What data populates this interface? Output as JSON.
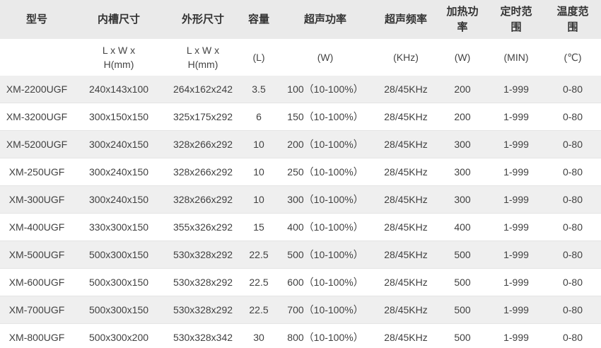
{
  "colors": {
    "page_background": "#ffffff",
    "header_background": "#eaeaea",
    "stripe_background": "#efefef",
    "header_text": "#333333",
    "body_text": "#414141",
    "row_border": "#e4e4e4",
    "table_bottom_border": "#d6d6d6"
  },
  "table": {
    "headers": [
      "型号",
      "内槽尺寸",
      "外形尺寸",
      "容量",
      "超声功率",
      "超声频率",
      "加热功\n率",
      "定时范\n围",
      "温度范\n围"
    ],
    "units": [
      "",
      "L x W x\nH(mm)",
      "L x W x\nH(mm)",
      "(L)",
      "(W)",
      "(KHz)",
      "(W)",
      "(MIN)",
      "(℃)"
    ],
    "rows": [
      [
        "XM-2200UGF",
        "240x143x100",
        "264x162x242",
        "3.5",
        "100（10-100%）",
        "28/45KHz",
        "200",
        "1-999",
        "0-80"
      ],
      [
        "XM-3200UGF",
        "300x150x150",
        "325x175x292",
        "6",
        "150（10-100%）",
        "28/45KHz",
        "200",
        "1-999",
        "0-80"
      ],
      [
        "XM-5200UGF",
        "300x240x150",
        "328x266x292",
        "10",
        "200（10-100%）",
        "28/45KHz",
        "300",
        "1-999",
        "0-80"
      ],
      [
        "XM-250UGF",
        "300x240x150",
        "328x266x292",
        "10",
        "250（10-100%）",
        "28/45KHz",
        "300",
        "1-999",
        "0-80"
      ],
      [
        "XM-300UGF",
        "300x240x150",
        "328x266x292",
        "10",
        "300（10-100%）",
        "28/45KHz",
        "300",
        "1-999",
        "0-80"
      ],
      [
        "XM-400UGF",
        "330x300x150",
        "355x326x292",
        "15",
        "400（10-100%）",
        "28/45KHz",
        "400",
        "1-999",
        "0-80"
      ],
      [
        "XM-500UGF",
        "500x300x150",
        "530x328x292",
        "22.5",
        "500（10-100%）",
        "28/45KHz",
        "500",
        "1-999",
        "0-80"
      ],
      [
        "XM-600UGF",
        "500x300x150",
        "530x328x292",
        "22.5",
        "600（10-100%）",
        "28/45KHz",
        "500",
        "1-999",
        "0-80"
      ],
      [
        "XM-700UGF",
        "500x300x150",
        "530x328x292",
        "22.5",
        "700（10-100%）",
        "28/45KHz",
        "500",
        "1-999",
        "0-80"
      ],
      [
        "XM-800UGF",
        "500x300x200",
        "530x328x342",
        "30",
        "800（10-100%）",
        "28/45KHz",
        "500",
        "1-999",
        "0-80"
      ]
    ]
  }
}
